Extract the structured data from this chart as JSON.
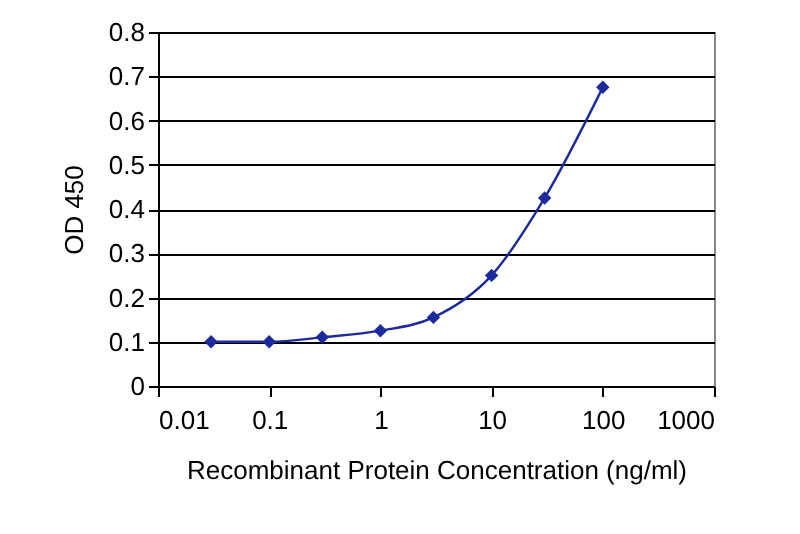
{
  "chart_data": {
    "type": "line",
    "xlabel": "Recombinant Protein Concentration (ng/ml)",
    "ylabel": "OD 450",
    "x": [
      0.03,
      0.1,
      0.3,
      1,
      3,
      10,
      30,
      100
    ],
    "series": [
      {
        "color": "#1c2a9c",
        "values": [
          0.1,
          0.1,
          0.11,
          0.125,
          0.155,
          0.25,
          0.425,
          0.675
        ]
      }
    ],
    "log": "x",
    "xlim": [
      0.01,
      1000
    ],
    "xticks": [
      0.01,
      0.1,
      1,
      10,
      100,
      1000
    ],
    "ylim": [
      0,
      0.8
    ],
    "yticks": [
      0,
      0.1,
      0.2,
      0.3,
      0.4,
      0.5,
      0.6,
      0.7,
      0.8
    ],
    "grid": "y",
    "marker": "diamond",
    "line_style": "solid"
  }
}
